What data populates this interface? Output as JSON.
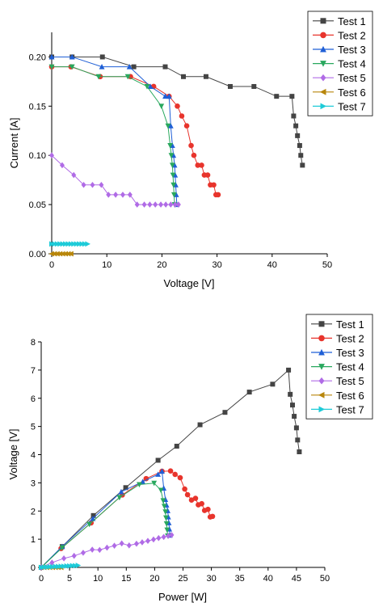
{
  "chart_data": [
    {
      "type": "scatter",
      "title": "",
      "xlabel": "Voltage [V]",
      "ylabel": "Current [A]",
      "xlim": [
        0,
        50
      ],
      "ylim": [
        0,
        0.225
      ],
      "xticks": [
        "0",
        "10",
        "20",
        "30",
        "40",
        "50"
      ],
      "yticks": [
        "0.00",
        "0.05",
        "0.10",
        "0.15",
        "0.20"
      ],
      "ytick_values": [
        0,
        0.05,
        0.1,
        0.15,
        0.2
      ],
      "grid": false,
      "legend_position": "top-right",
      "series": [
        {
          "name": "Test 1",
          "color": "#444444",
          "marker": "square",
          "points": [
            [
              0,
              0.2
            ],
            [
              3.7,
              0.2
            ],
            [
              9.2,
              0.2
            ],
            [
              14.9,
              0.19
            ],
            [
              20.6,
              0.19
            ],
            [
              23.9,
              0.18
            ],
            [
              28,
              0.18
            ],
            [
              32.4,
              0.17
            ],
            [
              36.7,
              0.17
            ],
            [
              40.8,
              0.16
            ],
            [
              43.6,
              0.16
            ],
            [
              43.9,
              0.14
            ],
            [
              44.3,
              0.13
            ],
            [
              44.6,
              0.12
            ],
            [
              45,
              0.11
            ],
            [
              45.2,
              0.1
            ],
            [
              45.5,
              0.09
            ]
          ]
        },
        {
          "name": "Test 2",
          "color": "#e8342c",
          "marker": "circle",
          "points": [
            [
              0,
              0.19
            ],
            [
              3.5,
              0.19
            ],
            [
              8.8,
              0.18
            ],
            [
              14.3,
              0.18
            ],
            [
              18.5,
              0.17
            ],
            [
              21.3,
              0.16
            ],
            [
              22.8,
              0.15
            ],
            [
              23.6,
              0.14
            ],
            [
              24.5,
              0.13
            ],
            [
              25.3,
              0.11
            ],
            [
              25.8,
              0.1
            ],
            [
              26.5,
              0.09
            ],
            [
              27.2,
              0.09
            ],
            [
              27.7,
              0.08
            ],
            [
              28.3,
              0.08
            ],
            [
              28.8,
              0.07
            ],
            [
              29.4,
              0.07
            ],
            [
              29.8,
              0.06
            ],
            [
              30.2,
              0.06
            ]
          ]
        },
        {
          "name": "Test 3",
          "color": "#1f5fd6",
          "marker": "triangle-up",
          "points": [
            [
              0,
              0.2
            ],
            [
              3.7,
              0.2
            ],
            [
              9.1,
              0.19
            ],
            [
              14.1,
              0.19
            ],
            [
              17.9,
              0.17
            ],
            [
              20.6,
              0.16
            ],
            [
              21.3,
              0.16
            ],
            [
              21.6,
              0.13
            ],
            [
              21.9,
              0.11
            ],
            [
              22.1,
              0.1
            ],
            [
              22.3,
              0.09
            ],
            [
              22.4,
              0.08
            ],
            [
              22.5,
              0.07
            ],
            [
              22.6,
              0.06
            ],
            [
              22.7,
              0.05
            ]
          ]
        },
        {
          "name": "Test 4",
          "color": "#29a85e",
          "marker": "triangle-down",
          "points": [
            [
              0,
              0.19
            ],
            [
              3.7,
              0.19
            ],
            [
              8.5,
              0.18
            ],
            [
              13.8,
              0.18
            ],
            [
              17.3,
              0.17
            ],
            [
              19.9,
              0.15
            ],
            [
              21.1,
              0.13
            ],
            [
              21.5,
              0.11
            ],
            [
              21.7,
              0.1
            ],
            [
              21.9,
              0.09
            ],
            [
              22,
              0.08
            ],
            [
              22.1,
              0.07
            ],
            [
              22.2,
              0.06
            ],
            [
              22.3,
              0.05
            ]
          ]
        },
        {
          "name": "Test 5",
          "color": "#b06be6",
          "marker": "diamond",
          "points": [
            [
              0,
              0.1
            ],
            [
              1.9,
              0.09
            ],
            [
              4,
              0.08
            ],
            [
              5.8,
              0.07
            ],
            [
              7.4,
              0.07
            ],
            [
              9,
              0.07
            ],
            [
              10.3,
              0.06
            ],
            [
              11.6,
              0.06
            ],
            [
              12.9,
              0.06
            ],
            [
              14.2,
              0.06
            ],
            [
              15.5,
              0.05
            ],
            [
              16.8,
              0.05
            ],
            [
              17.8,
              0.05
            ],
            [
              18.8,
              0.05
            ],
            [
              19.8,
              0.05
            ],
            [
              20.7,
              0.05
            ],
            [
              21.6,
              0.05
            ],
            [
              22.4,
              0.05
            ],
            [
              23,
              0.05
            ]
          ]
        },
        {
          "name": "Test 6",
          "color": "#b8860b",
          "marker": "triangle-left",
          "points": [
            [
              0,
              0
            ],
            [
              0.5,
              0
            ],
            [
              1,
              0
            ],
            [
              1.5,
              0
            ],
            [
              2,
              0
            ],
            [
              2.5,
              0
            ],
            [
              3,
              0
            ],
            [
              3.5,
              0
            ]
          ]
        },
        {
          "name": "Test 7",
          "color": "#1ecbd8",
          "marker": "triangle-right",
          "points": [
            [
              0,
              0.01
            ],
            [
              0.5,
              0.01
            ],
            [
              1,
              0.01
            ],
            [
              1.5,
              0.01
            ],
            [
              2,
              0.01
            ],
            [
              2.5,
              0.01
            ],
            [
              3,
              0.01
            ],
            [
              3.5,
              0.01
            ],
            [
              4,
              0.01
            ],
            [
              4.5,
              0.01
            ],
            [
              5,
              0.01
            ],
            [
              5.5,
              0.01
            ],
            [
              6,
              0.01
            ],
            [
              6.5,
              0.01
            ]
          ]
        }
      ]
    },
    {
      "type": "scatter",
      "title": "",
      "xlabel": "Power [W]",
      "ylabel": "Voltage [V]",
      "xlim": [
        0,
        50
      ],
      "ylim": [
        0,
        8
      ],
      "xticks": [
        "0",
        "5",
        "10",
        "15",
        "20",
        "25",
        "30",
        "35",
        "40",
        "45",
        "50"
      ],
      "yticks": [
        "0",
        "1",
        "2",
        "3",
        "4",
        "5",
        "6",
        "7",
        "8"
      ],
      "ytick_values": [
        0,
        1,
        2,
        3,
        4,
        5,
        6,
        7,
        8
      ],
      "grid": false,
      "legend_position": "top-right",
      "series": [
        {
          "name": "Test 1",
          "color": "#444444",
          "marker": "square",
          "points": [
            [
              0,
              0
            ],
            [
              3.7,
              0.74
            ],
            [
              9.2,
              1.84
            ],
            [
              14.9,
              2.83
            ],
            [
              20.6,
              3.8
            ],
            [
              23.9,
              4.3
            ],
            [
              28,
              5.06
            ],
            [
              32.4,
              5.5
            ],
            [
              36.7,
              6.22
            ],
            [
              40.8,
              6.5
            ],
            [
              43.6,
              7
            ],
            [
              43.9,
              6.14
            ],
            [
              44.3,
              5.76
            ],
            [
              44.6,
              5.36
            ],
            [
              45,
              4.95
            ],
            [
              45.2,
              4.52
            ],
            [
              45.5,
              4.1
            ]
          ]
        },
        {
          "name": "Test 2",
          "color": "#e8342c",
          "marker": "circle",
          "points": [
            [
              0,
              0
            ],
            [
              3.5,
              0.67
            ],
            [
              8.8,
              1.58
            ],
            [
              14.3,
              2.57
            ],
            [
              18.5,
              3.15
            ],
            [
              21.3,
              3.41
            ],
            [
              22.8,
              3.42
            ],
            [
              23.6,
              3.3
            ],
            [
              24.5,
              3.18
            ],
            [
              25.3,
              2.78
            ],
            [
              25.8,
              2.58
            ],
            [
              26.5,
              2.39
            ],
            [
              27.2,
              2.45
            ],
            [
              27.7,
              2.22
            ],
            [
              28.3,
              2.26
            ],
            [
              28.8,
              2.02
            ],
            [
              29.4,
              2.06
            ],
            [
              29.8,
              1.79
            ],
            [
              30.2,
              1.81
            ]
          ]
        },
        {
          "name": "Test 3",
          "color": "#1f5fd6",
          "marker": "triangle-up",
          "points": [
            [
              0,
              0
            ],
            [
              3.7,
              0.74
            ],
            [
              9.1,
              1.73
            ],
            [
              14.1,
              2.68
            ],
            [
              17.9,
              3.04
            ],
            [
              20.6,
              3.3
            ],
            [
              21.3,
              3.41
            ],
            [
              21.6,
              2.81
            ],
            [
              21.9,
              2.41
            ],
            [
              22.1,
              2.21
            ],
            [
              22.3,
              2.01
            ],
            [
              22.4,
              1.79
            ],
            [
              22.5,
              1.58
            ],
            [
              22.6,
              1.36
            ],
            [
              22.7,
              1.14
            ]
          ]
        },
        {
          "name": "Test 4",
          "color": "#29a85e",
          "marker": "triangle-down",
          "points": [
            [
              0,
              0
            ],
            [
              3.7,
              0.7
            ],
            [
              8.5,
              1.53
            ],
            [
              13.8,
              2.48
            ],
            [
              17.3,
              2.94
            ],
            [
              19.9,
              2.99
            ],
            [
              21.1,
              2.74
            ],
            [
              21.5,
              2.37
            ],
            [
              21.7,
              2.17
            ],
            [
              21.9,
              1.97
            ],
            [
              22,
              1.76
            ],
            [
              22.1,
              1.55
            ],
            [
              22.2,
              1.33
            ],
            [
              22.3,
              1.12
            ]
          ]
        },
        {
          "name": "Test 5",
          "color": "#b06be6",
          "marker": "diamond",
          "points": [
            [
              0,
              0
            ],
            [
              1.9,
              0.17
            ],
            [
              4,
              0.32
            ],
            [
              5.8,
              0.41
            ],
            [
              7.4,
              0.52
            ],
            [
              9,
              0.63
            ],
            [
              10.3,
              0.62
            ],
            [
              11.6,
              0.7
            ],
            [
              12.9,
              0.77
            ],
            [
              14.2,
              0.85
            ],
            [
              15.5,
              0.78
            ],
            [
              16.8,
              0.84
            ],
            [
              17.8,
              0.89
            ],
            [
              18.8,
              0.94
            ],
            [
              19.8,
              0.99
            ],
            [
              20.7,
              1.04
            ],
            [
              21.6,
              1.08
            ],
            [
              22.4,
              1.12
            ],
            [
              23,
              1.15
            ]
          ]
        },
        {
          "name": "Test 6",
          "color": "#b8860b",
          "marker": "triangle-left",
          "points": [
            [
              0,
              0
            ],
            [
              0.5,
              0
            ],
            [
              1,
              0
            ],
            [
              1.5,
              0
            ],
            [
              2,
              0
            ],
            [
              2.5,
              0
            ],
            [
              3,
              0
            ],
            [
              3.5,
              0
            ]
          ]
        },
        {
          "name": "Test 7",
          "color": "#1ecbd8",
          "marker": "triangle-right",
          "points": [
            [
              0,
              0
            ],
            [
              0.5,
              0.01
            ],
            [
              1,
              0.01
            ],
            [
              1.5,
              0.02
            ],
            [
              2,
              0.02
            ],
            [
              2.5,
              0.03
            ],
            [
              3,
              0.03
            ],
            [
              3.5,
              0.04
            ],
            [
              4,
              0.04
            ],
            [
              4.5,
              0.05
            ],
            [
              5,
              0.05
            ],
            [
              5.5,
              0.06
            ],
            [
              6,
              0.06
            ],
            [
              6.5,
              0.07
            ]
          ]
        }
      ]
    }
  ]
}
